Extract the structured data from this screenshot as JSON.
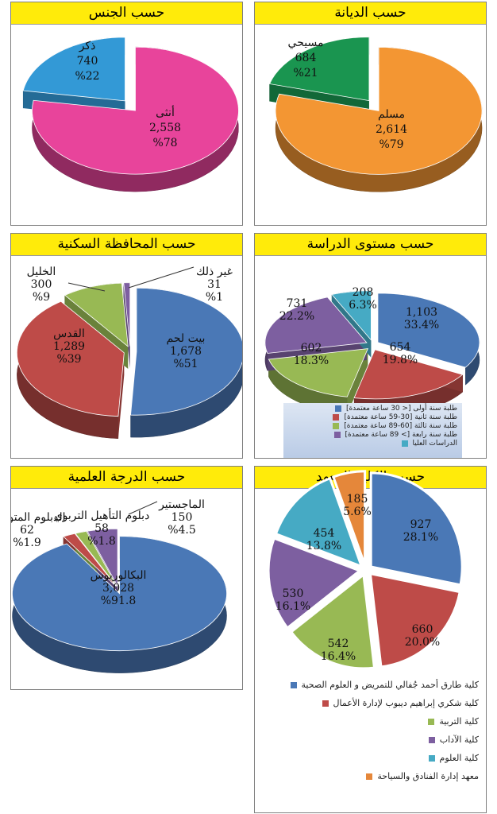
{
  "panels": {
    "religion": {
      "title": "حسب الديانة"
    },
    "gender": {
      "title": "حسب الجنس"
    },
    "level": {
      "title": "حسب مستوى الدراسة"
    },
    "governorate": {
      "title": "حسب المحافظة السكنية"
    },
    "college": {
      "title": "حسب الكلية/المعهد"
    },
    "degree": {
      "title": "حسب الدرجة العلمية"
    }
  },
  "chart_data": [
    {
      "id": "religion",
      "type": "pie",
      "title": "حسب الديانة",
      "slices": [
        {
          "label": "مسلم",
          "value": 2614,
          "value_text": "2,614",
          "pct_text": "%79",
          "color": "#f39633"
        },
        {
          "label": "مسيحي",
          "value": 684,
          "value_text": "684",
          "pct_text": "%21",
          "color": "#1a9550"
        }
      ]
    },
    {
      "id": "gender",
      "type": "pie",
      "title": "حسب الجنس",
      "slices": [
        {
          "label": "أنثى",
          "value": 2558,
          "value_text": "2,558",
          "pct_text": "%78",
          "color": "#e8449b"
        },
        {
          "label": "ذكر",
          "value": 740,
          "value_text": "740",
          "pct_text": "%22",
          "color": "#3399d6"
        }
      ]
    },
    {
      "id": "level",
      "type": "pie",
      "title": "حسب مستوى الدراسة",
      "slices": [
        {
          "label": "طلبة سنة أولى [< 30 ساعة معتمدة]",
          "value": 1103,
          "value_text": "1,103",
          "pct_text": "33.4%",
          "color": "#4a78b6"
        },
        {
          "label": "طلبة سنة ثانية [30-59 ساعة معتمدة]",
          "value": 654,
          "value_text": "654",
          "pct_text": "19.8%",
          "color": "#be4b48"
        },
        {
          "label": "طلبة سنة ثالثة [60-89 ساعة معتمدة]",
          "value": 602,
          "value_text": "602",
          "pct_text": "18.3%",
          "color": "#98b954"
        },
        {
          "label": "طلبة سنة رابعة [> 89 ساعة معتمدة]",
          "value": 731,
          "value_text": "731",
          "pct_text": "22.2%",
          "color": "#7d5fa0"
        },
        {
          "label": "الدراسات العليا",
          "value": 208,
          "value_text": "208",
          "pct_text": "6.3%",
          "color": "#46aac4"
        }
      ]
    },
    {
      "id": "governorate",
      "type": "pie",
      "title": "حسب المحافظة السكنية",
      "slices": [
        {
          "label": "بيت لحم",
          "value": 1678,
          "value_text": "1,678",
          "pct_text": "%51",
          "color": "#4a78b6"
        },
        {
          "label": "القدس",
          "value": 1289,
          "value_text": "1,289",
          "pct_text": "%39",
          "color": "#be4b48"
        },
        {
          "label": "الخليل",
          "value": 300,
          "value_text": "300",
          "pct_text": "%9",
          "color": "#98b954"
        },
        {
          "label": "غير ذلك",
          "value": 31,
          "value_text": "31",
          "pct_text": "%1",
          "color": "#7d5fa0"
        }
      ]
    },
    {
      "id": "college",
      "type": "pie",
      "title": "حسب الكلية/المعهد",
      "slices": [
        {
          "label": "كلية طارق أحمد جُفالي للتمريض و العلوم الصحية",
          "value": 927,
          "value_text": "927",
          "pct_text": "28.1%",
          "color": "#4a78b6"
        },
        {
          "label": "كلية شكري إبراهيم ديبوب لإدارة الأعمال",
          "value": 660,
          "value_text": "660",
          "pct_text": "20.0%",
          "color": "#be4b48"
        },
        {
          "label": "كلية التربية",
          "value": 542,
          "value_text": "542",
          "pct_text": "16.4%",
          "color": "#98b954"
        },
        {
          "label": "كلية الآداب",
          "value": 530,
          "value_text": "530",
          "pct_text": "16.1%",
          "color": "#7d5fa0"
        },
        {
          "label": "كلية العلوم",
          "value": 454,
          "value_text": "454",
          "pct_text": "13.8%",
          "color": "#46aac4"
        },
        {
          "label": "معهد إدارة الفنادق والسياحة",
          "value": 185,
          "value_text": "185",
          "pct_text": "5.6%",
          "color": "#e5873a"
        }
      ]
    },
    {
      "id": "degree",
      "type": "pie",
      "title": "حسب الدرجة العلمية",
      "slices": [
        {
          "label": "البكالوريوس",
          "value": 3028,
          "value_text": "3,028",
          "pct_text": "%91.8",
          "color": "#4a78b6"
        },
        {
          "label": "الدبلوم المتوسط",
          "value": 62,
          "value_text": "62",
          "pct_text": "%1.9",
          "color": "#be4b48"
        },
        {
          "label": "دبلوم التأهيل التربوي",
          "value": 58,
          "value_text": "58",
          "pct_text": "%1.8",
          "color": "#98b954"
        },
        {
          "label": "الماجستير",
          "value": 150,
          "value_text": "150",
          "pct_text": "%4.5",
          "color": "#7d5fa0"
        }
      ]
    }
  ]
}
